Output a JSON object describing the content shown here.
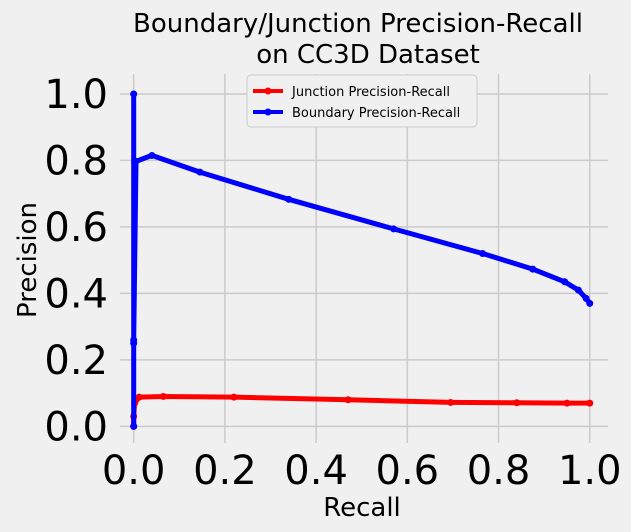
{
  "chart_data": {
    "type": "line",
    "title_lines": [
      "Boundary/Junction Precision-Recall",
      "on CC3D  Dataset"
    ],
    "xlabel": "Recall",
    "ylabel": "Precision",
    "xlim": [
      -0.03,
      1.04
    ],
    "ylim": [
      -0.05,
      1.06
    ],
    "x_ticks": [
      "0.0",
      "0.2",
      "0.4",
      "0.6",
      "0.8",
      "1.0"
    ],
    "y_ticks": [
      "0.0",
      "0.2",
      "0.4",
      "0.6",
      "0.8",
      "1.0"
    ],
    "grid": true,
    "legend_position": "top-center",
    "series": [
      {
        "name": "Junction Precision-Recall",
        "color": "#ff0000",
        "x": [
          0.0,
          0.0,
          0.002,
          0.012,
          0.065,
          0.22,
          0.47,
          0.695,
          0.84,
          0.95,
          1.0
        ],
        "y": [
          0.0,
          0.03,
          0.07,
          0.088,
          0.09,
          0.088,
          0.08,
          0.072,
          0.071,
          0.07,
          0.07
        ]
      },
      {
        "name": "Boundary Precision-Recall",
        "color": "#0000ff",
        "x": [
          0.0,
          0.0,
          0.0,
          0.0,
          0.005,
          0.04,
          0.145,
          0.34,
          0.57,
          0.765,
          0.875,
          0.945,
          0.975,
          0.992,
          1.0
        ],
        "y": [
          0.0,
          0.25,
          1.0,
          0.26,
          0.797,
          0.815,
          0.765,
          0.683,
          0.594,
          0.52,
          0.473,
          0.435,
          0.41,
          0.385,
          0.37
        ]
      }
    ]
  }
}
